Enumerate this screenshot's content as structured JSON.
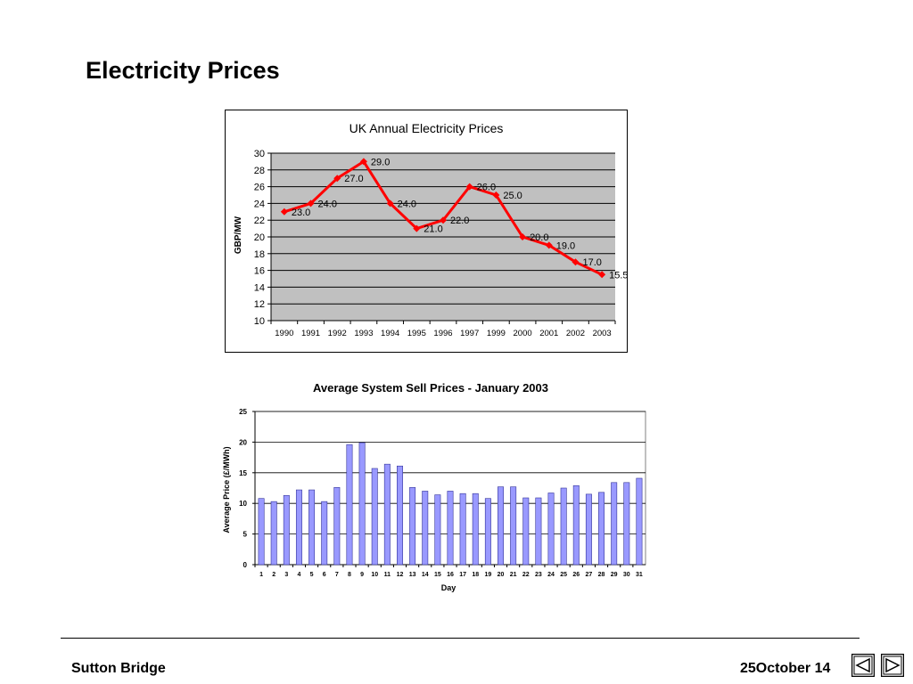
{
  "slide": {
    "title": "Electricity Prices"
  },
  "footer": {
    "left": "Sutton Bridge",
    "right": "25October 14"
  },
  "nav": {
    "prev_icon": "triangle-left-icon",
    "next_icon": "triangle-right-icon"
  },
  "colors": {
    "line": "#ff0000",
    "plot_bg": "#c0c0c0",
    "bar": "#9999ff"
  },
  "chart_data": [
    {
      "type": "line",
      "title": "UK Annual Electricity Prices",
      "ylabel": "GBP/MW",
      "xlabel": "",
      "ylim": [
        10,
        30
      ],
      "yticks": [
        10,
        12,
        14,
        16,
        18,
        20,
        22,
        24,
        26,
        28,
        30
      ],
      "grid": true,
      "categories": [
        "1990",
        "1991",
        "1992",
        "1993",
        "1994",
        "1995",
        "1996",
        "1997",
        "1999",
        "2000",
        "2001",
        "2002",
        "2003"
      ],
      "series": [
        {
          "values": [
            23.0,
            24.0,
            27.0,
            29.0,
            24.0,
            21.0,
            22.0,
            26.0,
            25.0,
            20.0,
            19.0,
            17.0,
            15.5
          ],
          "labels": [
            "23.0",
            "24.0",
            "27.0",
            "29.0",
            "24.0",
            "21.0",
            "22.0",
            "26.0",
            "25.0",
            "20.0",
            "19.0",
            "17.0",
            "15.5"
          ]
        }
      ]
    },
    {
      "type": "bar",
      "title": "Average System Sell Prices - January 2003",
      "xlabel": "Day",
      "ylabel": "Average Price (£/MWh)",
      "ylim": [
        0,
        25
      ],
      "yticks": [
        0,
        5,
        10,
        15,
        20,
        25
      ],
      "grid": true,
      "categories": [
        "1",
        "2",
        "3",
        "4",
        "5",
        "6",
        "7",
        "8",
        "9",
        "10",
        "11",
        "12",
        "13",
        "14",
        "15",
        "16",
        "17",
        "18",
        "19",
        "20",
        "21",
        "22",
        "23",
        "24",
        "25",
        "26",
        "27",
        "28",
        "29",
        "30",
        "31"
      ],
      "values": [
        10.8,
        10.3,
        11.3,
        12.2,
        12.2,
        10.3,
        12.6,
        19.6,
        19.9,
        15.7,
        16.4,
        16.1,
        12.6,
        12.0,
        11.4,
        12.0,
        11.6,
        11.6,
        10.8,
        12.7,
        12.7,
        10.9,
        10.9,
        11.7,
        12.5,
        12.9,
        11.5,
        11.8,
        13.4,
        13.4,
        14.1
      ]
    }
  ]
}
